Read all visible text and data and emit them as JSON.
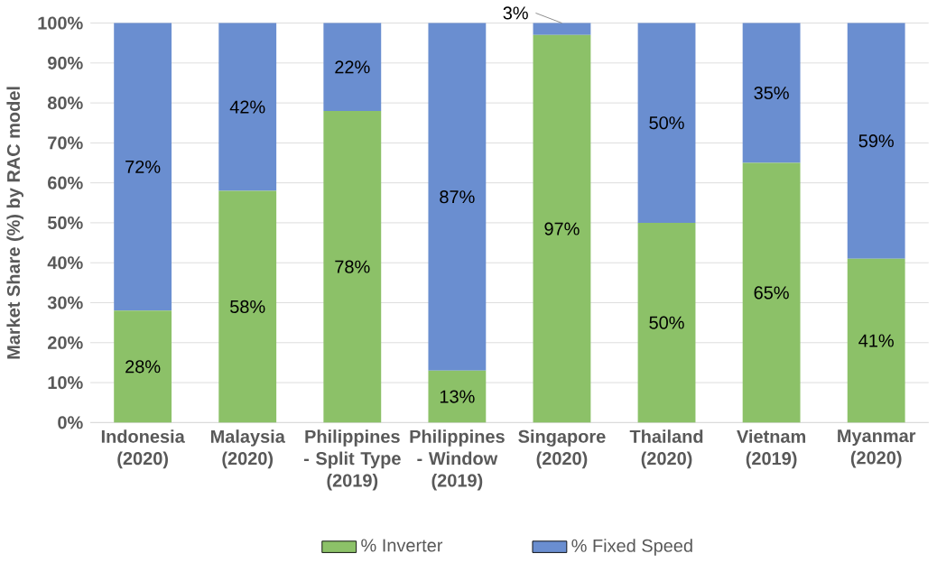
{
  "chart_data": {
    "type": "bar",
    "stacked": true,
    "ylabel": "Market Share (%) by RAC model",
    "categories": [
      "Indonesia (2020)",
      "Malaysia (2020)",
      "Philippines - Split Type (2019)",
      "Philippines - Window (2019)",
      "Singapore (2020)",
      "Thailand (2020)",
      "Vietnam (2019)",
      "Myanmar (2020)"
    ],
    "series": [
      {
        "name": "% Inverter",
        "color": "#8cc168",
        "values": [
          28,
          58,
          78,
          13,
          97,
          50,
          65,
          41
        ],
        "value_labels": [
          "28%",
          "58%",
          "78%",
          "13%",
          "97%",
          "50%",
          "65%",
          "41%"
        ]
      },
      {
        "name": "% Fixed Speed",
        "color": "#6a8ed0",
        "values": [
          72,
          42,
          22,
          87,
          3,
          50,
          35,
          59
        ],
        "value_labels": [
          "72%",
          "42%",
          "22%",
          "87%",
          "3%",
          "50%",
          "35%",
          "59%"
        ]
      }
    ],
    "ylim": [
      0,
      100
    ],
    "yticks": [
      {
        "value": 0,
        "label": "0%"
      },
      {
        "value": 10,
        "label": "10%"
      },
      {
        "value": 20,
        "label": "20%"
      },
      {
        "value": 30,
        "label": "30%"
      },
      {
        "value": 40,
        "label": "40%"
      },
      {
        "value": 50,
        "label": "50%"
      },
      {
        "value": 60,
        "label": "60%"
      },
      {
        "value": 70,
        "label": "70%"
      },
      {
        "value": 80,
        "label": "80%"
      },
      {
        "value": 90,
        "label": "90%"
      },
      {
        "value": 100,
        "label": "100%"
      }
    ],
    "grid": "y",
    "legend": "bottom"
  }
}
